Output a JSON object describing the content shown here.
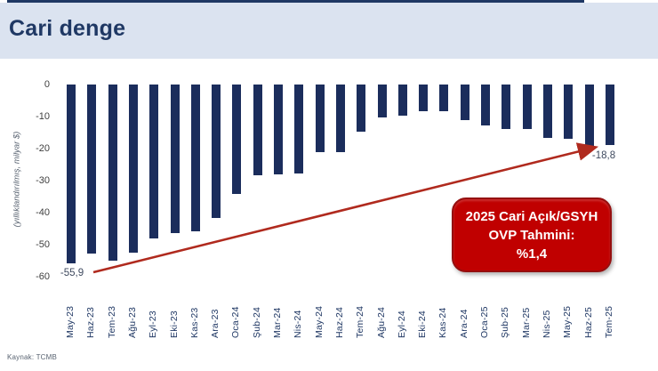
{
  "header": {
    "title": "Cari denge"
  },
  "footer": {
    "source": "Kaynak: TCMB"
  },
  "annotation": {
    "line1": "2025 Cari Açık/GSYH",
    "line2": "OVP Tahmini:",
    "line3": "%1,4",
    "box_color": "#c00000",
    "text_color": "#ffffff"
  },
  "colors": {
    "header_bg": "#dbe3f0",
    "title": "#1f3864",
    "bar": "#1b2d5c",
    "arrow": "#b02a1e",
    "callout": "#c00000"
  },
  "chart_data": {
    "type": "bar",
    "title": "Cari denge",
    "ylabel": "(yıllıklandırılmış, milyar $)",
    "xlabel": "",
    "categories": [
      "May-23",
      "Haz-23",
      "Tem-23",
      "Ağu-23",
      "Eyl-23",
      "Eki-23",
      "Kas-23",
      "Ara-23",
      "Oca-24",
      "Şub-24",
      "Mar-24",
      "Nis-24",
      "May-24",
      "Haz-24",
      "Tem-24",
      "Ağu-24",
      "Eyl-24",
      "Eki-24",
      "Kas-24",
      "Ara-24",
      "Oca-25",
      "Şub-25",
      "Mar-25",
      "Nis-25",
      "May-25",
      "Haz-25",
      "Tem-25"
    ],
    "values": [
      -55.9,
      -52.9,
      -55.0,
      -52.6,
      -48.1,
      -46.4,
      -45.8,
      -41.6,
      -34.1,
      -28.4,
      -28.1,
      -27.9,
      -21.2,
      -21.2,
      -14.8,
      -10.4,
      -9.8,
      -8.2,
      -8.3,
      -11.1,
      -12.8,
      -13.8,
      -14.0,
      -16.7,
      -17.0,
      -19.4,
      -18.8
    ],
    "ylim": [
      -60,
      0
    ],
    "yticks": [
      "0",
      "-10",
      "-20",
      "-30",
      "-40",
      "-50",
      "-60"
    ],
    "grid": false,
    "legend": false,
    "first_point_label": "-55,9",
    "last_point_label": "-18,8",
    "annotation_arrow": "rising red arrow from first bar label to last bar"
  }
}
